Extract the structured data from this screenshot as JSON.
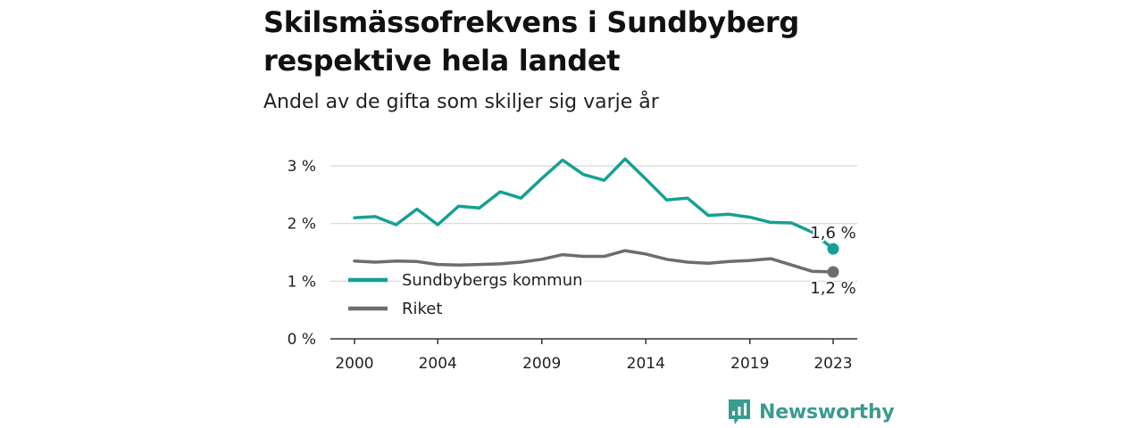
{
  "header": {
    "title_line1": "Skilsmässofrekvens i Sundbyberg",
    "title_line2": "respektive hela landet",
    "subtitle": "Andel av de gifta som skiljer sig varje år"
  },
  "brand": {
    "name": "Newsworthy",
    "color": "#3a9b91",
    "icon": "newsworthy-logo-icon"
  },
  "chart_data": {
    "type": "line",
    "x": [
      2000,
      2001,
      2002,
      2003,
      2004,
      2005,
      2006,
      2007,
      2008,
      2009,
      2010,
      2011,
      2012,
      2013,
      2014,
      2015,
      2016,
      2017,
      2018,
      2019,
      2020,
      2021,
      2022,
      2023
    ],
    "series": [
      {
        "name": "Sundbybergs kommun",
        "color": "#16a093",
        "values": [
          2.1,
          2.12,
          1.98,
          2.25,
          1.98,
          2.3,
          2.27,
          2.55,
          2.44,
          2.78,
          3.1,
          2.85,
          2.75,
          3.12,
          2.77,
          2.41,
          2.44,
          2.14,
          2.16,
          2.11,
          2.02,
          2.01,
          1.85,
          1.56
        ],
        "end_label": "1,6 %"
      },
      {
        "name": "Riket",
        "color": "#6d6c73",
        "values": [
          1.35,
          1.33,
          1.35,
          1.34,
          1.29,
          1.28,
          1.29,
          1.3,
          1.33,
          1.38,
          1.46,
          1.43,
          1.43,
          1.53,
          1.47,
          1.38,
          1.33,
          1.31,
          1.34,
          1.36,
          1.39,
          1.28,
          1.17,
          1.16
        ],
        "end_label": "1,2 %"
      }
    ],
    "xticks": [
      2000,
      2004,
      2009,
      2014,
      2019,
      2023
    ],
    "xtick_labels": [
      "2000",
      "2004",
      "2009",
      "2014",
      "2019",
      "2023"
    ],
    "yticks": [
      0,
      1,
      2,
      3
    ],
    "ytick_labels": [
      "0 %",
      "1 %",
      "2 %",
      "3 %"
    ],
    "xlim": [
      2000,
      2023
    ],
    "ylim": [
      0,
      3
    ],
    "grid": true,
    "legend_position": "lower-left"
  }
}
